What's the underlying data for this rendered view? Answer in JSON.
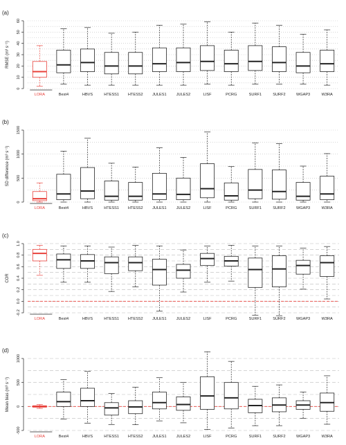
{
  "colors": {
    "highlight": "#e8403a",
    "box": "#222222",
    "grid": "#bbbbbb",
    "zero_line": "#e8403a"
  },
  "chart_data": [
    {
      "type": "box",
      "panel_label": "(a)",
      "ylabel": "RMSE (m³ s⁻¹)",
      "ylim": [
        0,
        60
      ],
      "yticks": [
        0,
        10,
        20,
        30,
        40,
        50,
        60
      ],
      "grid": "horizontal dotted",
      "categories": [
        "LORA",
        "Best4",
        "HBVS",
        "HTESS1",
        "HTESS2",
        "JULES1",
        "JULES2",
        "LISF",
        "PCRG",
        "SURF1",
        "SURF2",
        "WGAP3",
        "W3RA"
      ],
      "highlight": "LORA",
      "boxes": [
        {
          "min": 2,
          "q1": 10,
          "median": 15,
          "q3": 24,
          "max": 38
        },
        {
          "min": 4,
          "q1": 14,
          "median": 21,
          "q3": 34,
          "max": 53
        },
        {
          "min": 3,
          "q1": 15,
          "median": 23,
          "q3": 35,
          "max": 54
        },
        {
          "min": 3,
          "q1": 13,
          "median": 20,
          "q3": 32,
          "max": 49
        },
        {
          "min": 3,
          "q1": 13,
          "median": 20,
          "q3": 32,
          "max": 50
        },
        {
          "min": 3,
          "q1": 15,
          "median": 22,
          "q3": 36,
          "max": 56
        },
        {
          "min": 3,
          "q1": 15,
          "median": 23,
          "q3": 36,
          "max": 57
        },
        {
          "min": 4,
          "q1": 16,
          "median": 24,
          "q3": 38,
          "max": 59
        },
        {
          "min": 3,
          "q1": 15,
          "median": 22,
          "q3": 34,
          "max": 50
        },
        {
          "min": 4,
          "q1": 16,
          "median": 24,
          "q3": 38,
          "max": 58
        },
        {
          "min": 4,
          "q1": 15,
          "median": 23,
          "q3": 37,
          "max": 56
        },
        {
          "min": 4,
          "q1": 14,
          "median": 20,
          "q3": 32,
          "max": 48
        },
        {
          "min": 3,
          "q1": 15,
          "median": 22,
          "q3": 34,
          "max": 52
        }
      ]
    },
    {
      "type": "box",
      "panel_label": "(b)",
      "ylabel": "SD difference (m³ s⁻¹)",
      "ylim": [
        0,
        1500
      ],
      "yticks": [
        0,
        500,
        1000,
        1500
      ],
      "grid": "horizontal dotted",
      "categories": [
        "LORA",
        "Best4",
        "HBVS",
        "HTESS1",
        "HTESS2",
        "JULES1",
        "JULES2",
        "LISF",
        "PCRG",
        "SURF1",
        "SURF2",
        "WGAP3",
        "W3RA"
      ],
      "highlight": "LORA",
      "boxes": [
        {
          "min": 0,
          "q1": 30,
          "median": 70,
          "q3": 220,
          "max": 400
        },
        {
          "min": 0,
          "q1": 50,
          "median": 170,
          "q3": 580,
          "max": 1060
        },
        {
          "min": 0,
          "q1": 70,
          "median": 230,
          "q3": 720,
          "max": 1330
        },
        {
          "min": 0,
          "q1": 40,
          "median": 120,
          "q3": 440,
          "max": 810
        },
        {
          "min": 0,
          "q1": 40,
          "median": 120,
          "q3": 410,
          "max": 730
        },
        {
          "min": 0,
          "q1": 50,
          "median": 170,
          "q3": 600,
          "max": 1130
        },
        {
          "min": 0,
          "q1": 50,
          "median": 160,
          "q3": 500,
          "max": 930
        },
        {
          "min": 0,
          "q1": 90,
          "median": 280,
          "q3": 800,
          "max": 1460
        },
        {
          "min": 0,
          "q1": 40,
          "median": 130,
          "q3": 400,
          "max": 740
        },
        {
          "min": 0,
          "q1": 70,
          "median": 250,
          "q3": 680,
          "max": 1230
        },
        {
          "min": 0,
          "q1": 60,
          "median": 220,
          "q3": 670,
          "max": 1220
        },
        {
          "min": 0,
          "q1": 40,
          "median": 120,
          "q3": 410,
          "max": 750
        },
        {
          "min": 0,
          "q1": 50,
          "median": 170,
          "q3": 540,
          "max": 1010
        }
      ]
    },
    {
      "type": "box",
      "panel_label": "(c)",
      "ylabel": "COR",
      "ylim": [
        -0.2,
        1.0
      ],
      "yticks": [
        -0.2,
        0.0,
        0.2,
        0.4,
        0.6,
        0.8,
        1.0
      ],
      "ytick_labels": [
        "-0.2",
        "0.0",
        "0.2",
        "0.4",
        "0.6",
        "0.8",
        "1.0"
      ],
      "grid": "horizontal dashed",
      "reference_line": 0,
      "categories": [
        "LORA",
        "Best4",
        "HBVS",
        "HTESS1",
        "HTESS2",
        "JULES1",
        "JULES2",
        "LISF",
        "PCRG",
        "SURF1",
        "SURF2",
        "WGAP3",
        "W3RA"
      ],
      "highlight": "LORA",
      "boxes": [
        {
          "min": 0.45,
          "q1": 0.7,
          "median": 0.83,
          "q3": 0.9,
          "max": 0.97
        },
        {
          "min": 0.33,
          "q1": 0.57,
          "median": 0.72,
          "q3": 0.82,
          "max": 0.96
        },
        {
          "min": 0.33,
          "q1": 0.57,
          "median": 0.7,
          "q3": 0.81,
          "max": 0.96
        },
        {
          "min": 0.17,
          "q1": 0.48,
          "median": 0.67,
          "q3": 0.77,
          "max": 0.94
        },
        {
          "min": 0.25,
          "q1": 0.53,
          "median": 0.67,
          "q3": 0.77,
          "max": 0.97
        },
        {
          "min": -0.17,
          "q1": 0.28,
          "median": 0.55,
          "q3": 0.73,
          "max": 0.96
        },
        {
          "min": 0.16,
          "q1": 0.4,
          "median": 0.54,
          "q3": 0.64,
          "max": 0.89
        },
        {
          "min": 0.33,
          "q1": 0.62,
          "median": 0.74,
          "q3": 0.83,
          "max": 0.96
        },
        {
          "min": 0.35,
          "q1": 0.61,
          "median": 0.7,
          "q3": 0.78,
          "max": 0.97
        },
        {
          "min": -0.24,
          "q1": 0.24,
          "median": 0.55,
          "q3": 0.75,
          "max": 0.96
        },
        {
          "min": -0.25,
          "q1": 0.25,
          "median": 0.56,
          "q3": 0.79,
          "max": 0.96
        },
        {
          "min": 0.21,
          "q1": 0.47,
          "median": 0.62,
          "q3": 0.71,
          "max": 0.92
        },
        {
          "min": 0.04,
          "q1": 0.43,
          "median": 0.67,
          "q3": 0.79,
          "max": 0.95
        }
      ]
    },
    {
      "type": "box",
      "panel_label": "(d)",
      "ylabel": "Mean bias (m³ s⁻¹)",
      "ylim": [
        -500,
        1000
      ],
      "yticks": [
        -500,
        0,
        500,
        1000
      ],
      "grid": "horizontal dashed",
      "reference_line": 0,
      "categories": [
        "LORA",
        "Best4",
        "HBVS",
        "HTESS1",
        "HTESS2",
        "JULES1",
        "JULES2",
        "LISF",
        "PCRG",
        "SURF1",
        "SURF2",
        "WGAP3",
        "W3RA"
      ],
      "highlight": "LORA",
      "boxes": [
        {
          "min": -40,
          "q1": -15,
          "median": 0,
          "q3": 15,
          "max": 40
        },
        {
          "min": -260,
          "q1": 0,
          "median": 100,
          "q3": 300,
          "max": 560
        },
        {
          "min": -350,
          "q1": 0,
          "median": 120,
          "q3": 380,
          "max": 730
        },
        {
          "min": -380,
          "q1": -180,
          "median": -30,
          "q3": 80,
          "max": 270
        },
        {
          "min": -380,
          "q1": -150,
          "median": -10,
          "q3": 120,
          "max": 400
        },
        {
          "min": -300,
          "q1": -50,
          "median": 80,
          "q3": 300,
          "max": 600
        },
        {
          "min": -340,
          "q1": -80,
          "median": 40,
          "q3": 200,
          "max": 500
        },
        {
          "min": -480,
          "q1": -60,
          "median": 220,
          "q3": 620,
          "max": 1140
        },
        {
          "min": -450,
          "q1": -50,
          "median": 180,
          "q3": 500,
          "max": 940
        },
        {
          "min": -400,
          "q1": -130,
          "median": 20,
          "q3": 150,
          "max": 420
        },
        {
          "min": -400,
          "q1": -110,
          "median": 30,
          "q3": 180,
          "max": 450
        },
        {
          "min": -250,
          "q1": -60,
          "median": 30,
          "q3": 120,
          "max": 300
        },
        {
          "min": -370,
          "q1": -100,
          "median": 80,
          "q3": 280,
          "max": 640
        }
      ]
    }
  ]
}
